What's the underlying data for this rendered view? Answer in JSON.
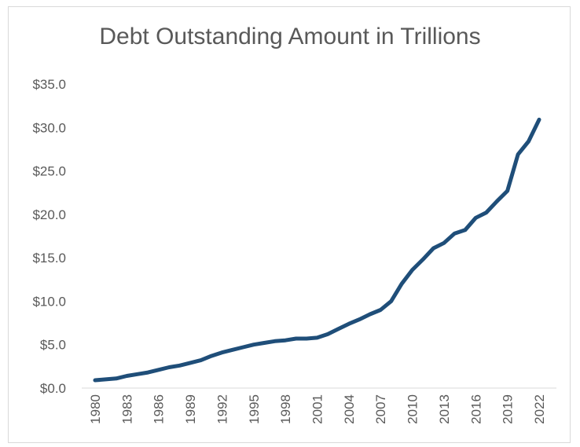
{
  "chart_data": {
    "type": "line",
    "title": "Debt Outstanding Amount in Trillions",
    "xlabel": "",
    "ylabel": "",
    "ylim": [
      0,
      35
    ],
    "y_ticks": [
      0,
      5,
      10,
      15,
      20,
      25,
      30,
      35
    ],
    "y_tick_labels": [
      "$0.0",
      "$5.0",
      "$10.0",
      "$15.0",
      "$20.0",
      "$25.0",
      "$30.0",
      "$35.0"
    ],
    "x_tick_labels": [
      "1980",
      "1983",
      "1986",
      "1989",
      "1992",
      "1995",
      "1998",
      "2001",
      "2004",
      "2007",
      "2010",
      "2013",
      "2016",
      "2019",
      "2022"
    ],
    "grid": false,
    "line_color": "#1f4e79",
    "series": [
      {
        "x": [
          1980,
          1981,
          1982,
          1983,
          1984,
          1985,
          1986,
          1987,
          1988,
          1989,
          1990,
          1991,
          1992,
          1993,
          1994,
          1995,
          1996,
          1997,
          1998,
          1999,
          2000,
          2001,
          2002,
          2003,
          2004,
          2005,
          2006,
          2007,
          2008,
          2009,
          2010,
          2011,
          2012,
          2013,
          2014,
          2015,
          2016,
          2017,
          2018,
          2019,
          2020,
          2021,
          2022
        ],
        "values": [
          0.9,
          1.0,
          1.1,
          1.4,
          1.6,
          1.8,
          2.1,
          2.4,
          2.6,
          2.9,
          3.2,
          3.7,
          4.1,
          4.4,
          4.7,
          5.0,
          5.2,
          5.4,
          5.5,
          5.7,
          5.7,
          5.8,
          6.2,
          6.8,
          7.4,
          7.9,
          8.5,
          9.0,
          10.0,
          12.0,
          13.6,
          14.8,
          16.1,
          16.7,
          17.8,
          18.2,
          19.6,
          20.2,
          21.5,
          22.7,
          26.9,
          28.4,
          30.9
        ]
      }
    ]
  }
}
